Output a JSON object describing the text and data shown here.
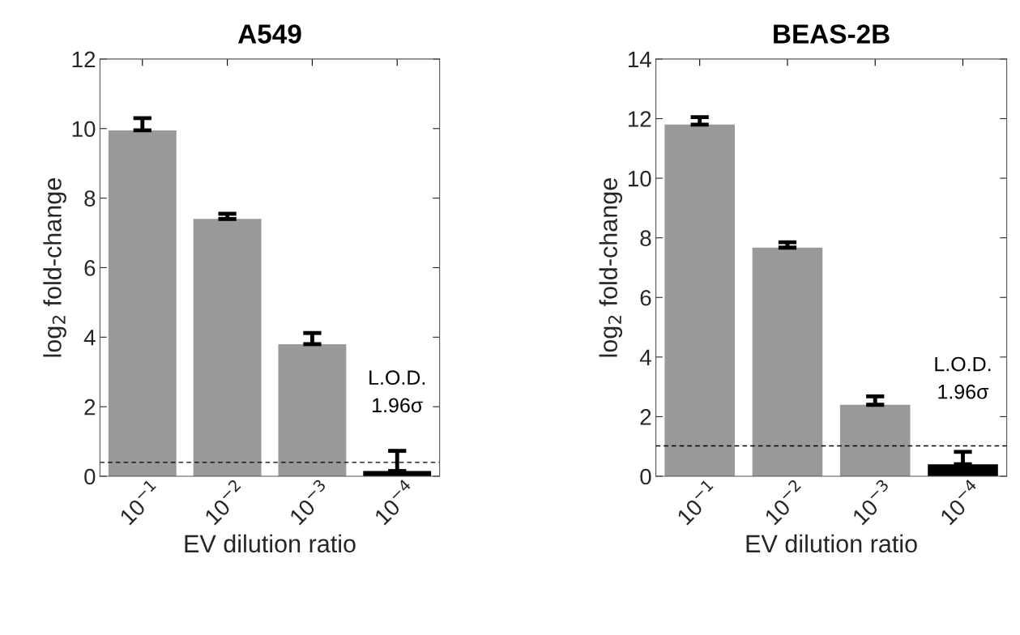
{
  "chart_data": [
    {
      "type": "bar",
      "title": "A549",
      "xlabel": "EV dilution ratio",
      "ylabel": "log$_{2}$ fold-change",
      "categories": [
        "10$^{−1}$",
        "10$^{−2}$",
        "10$^{−3}$",
        "10$^{−4}$"
      ],
      "values": [
        9.95,
        7.4,
        3.8,
        0.15
      ],
      "colors": [
        "#999999",
        "#999999",
        "#999999",
        "#000000"
      ],
      "errors": [
        [
          9.95,
          10.3
        ],
        [
          7.4,
          7.55
        ],
        [
          3.8,
          4.12
        ],
        [
          0.15,
          0.73
        ]
      ],
      "ylim": [
        0,
        12
      ],
      "yticks": [
        0,
        2,
        4,
        6,
        8,
        10,
        12
      ],
      "grid": false,
      "ref_lines": [
        {
          "axis": "y",
          "value": 0.4,
          "label": "L.O.D.\n1.96σ",
          "color": "#000000",
          "line_style": "dashed"
        }
      ]
    },
    {
      "type": "bar",
      "title": "BEAS-2B",
      "xlabel": "EV dilution ratio",
      "ylabel": "log$_{2}$ fold-change",
      "categories": [
        "10$^{−1}$",
        "10$^{−2}$",
        "10$^{−3}$",
        "10$^{−4}$"
      ],
      "values": [
        11.8,
        7.67,
        2.4,
        0.4
      ],
      "colors": [
        "#999999",
        "#999999",
        "#999999",
        "#000000"
      ],
      "errors": [
        [
          11.8,
          12.05
        ],
        [
          7.67,
          7.85
        ],
        [
          2.4,
          2.68
        ],
        [
          0.4,
          0.82
        ]
      ],
      "ylim": [
        0,
        14
      ],
      "yticks": [
        0,
        2,
        4,
        6,
        8,
        10,
        12,
        14
      ],
      "grid": false,
      "ref_lines": [
        {
          "axis": "y",
          "value": 1.02,
          "label": "L.O.D.\n1.96σ",
          "color": "#000000",
          "line_style": "dashed"
        }
      ]
    }
  ]
}
